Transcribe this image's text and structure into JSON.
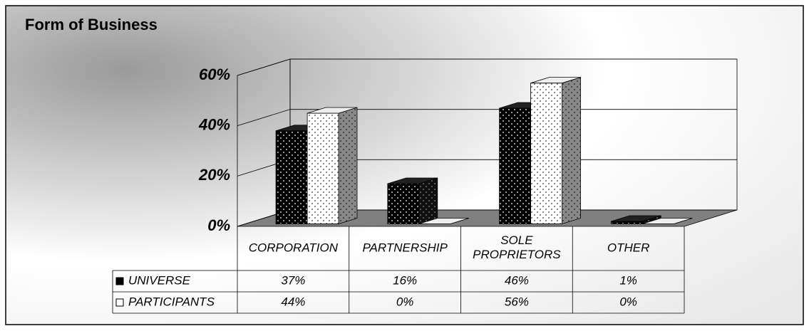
{
  "chart_data": {
    "type": "bar3d",
    "title": "Form of Business",
    "categories": [
      "CORPORATION",
      "PARTNERSHIP",
      "SOLE PROPRIETORS",
      "OTHER"
    ],
    "series": [
      {
        "name": "UNIVERSE",
        "color": "#000000",
        "values": [
          37,
          16,
          46,
          1
        ],
        "value_labels": [
          "37%",
          "16%",
          "46%",
          "1%"
        ]
      },
      {
        "name": "PARTICIPANTS",
        "color": "#ffffff",
        "values": [
          44,
          0,
          56,
          0
        ],
        "value_labels": [
          "44%",
          "0%",
          "56%",
          "0%"
        ]
      }
    ],
    "ylim": [
      0,
      60
    ],
    "yticks": [
      {
        "value": 0,
        "label": "0%"
      },
      {
        "value": 20,
        "label": "20%"
      },
      {
        "value": 40,
        "label": "40%"
      },
      {
        "value": 60,
        "label": "60%"
      }
    ],
    "grid": true
  }
}
